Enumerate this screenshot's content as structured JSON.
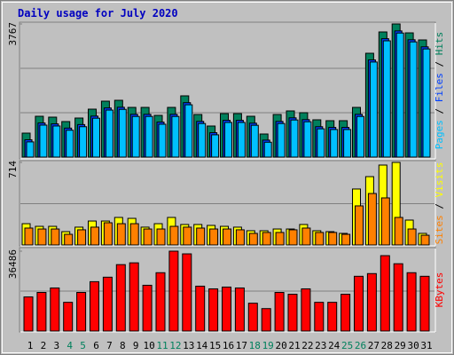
{
  "chart_data": [
    {
      "type": "bar",
      "title": "Daily usage for July 2020",
      "title_color": "#0000c0",
      "ylim": [
        0,
        3767
      ],
      "yticks": [
        3767
      ],
      "legend_separator": " / ",
      "series": [
        {
          "name": "Pages",
          "color": "#00c0ff",
          "values": [
            430,
            905,
            880,
            760,
            860,
            1100,
            1330,
            1350,
            1150,
            1150,
            930,
            1150,
            1480,
            950,
            630,
            980,
            980,
            900,
            420,
            950,
            1050,
            1000,
            800,
            780,
            780,
            1150,
            2690,
            3290,
            3510,
            3260,
            3060
          ]
        },
        {
          "name": "Files",
          "color": "#0040ff",
          "values": [
            490,
            965,
            940,
            820,
            920,
            1160,
            1390,
            1410,
            1210,
            1210,
            990,
            1210,
            1540,
            1010,
            690,
            1040,
            1040,
            960,
            480,
            1010,
            1110,
            1060,
            860,
            840,
            840,
            1210,
            2750,
            3350,
            3570,
            3320,
            3120
          ]
        },
        {
          "name": "Hits",
          "color": "#00805c",
          "values": [
            678,
            1155,
            1130,
            1005,
            1105,
            1356,
            1582,
            1607,
            1406,
            1406,
            1180,
            1406,
            1733,
            1205,
            879,
            1230,
            1230,
            1155,
            653,
            1205,
            1306,
            1256,
            1055,
            1030,
            1030,
            1406,
            2938,
            3541,
            3767,
            3515,
            3315
          ]
        }
      ]
    },
    {
      "type": "bar",
      "ylim": [
        0,
        714
      ],
      "yticks": [
        714
      ],
      "legend_separator": " / ",
      "series": [
        {
          "name": "Sites",
          "color": "#ff8000",
          "values": [
            146,
            138,
            138,
            92,
            131,
            154,
            192,
            184,
            184,
            138,
            138,
            161,
            154,
            146,
            138,
            138,
            131,
            100,
            108,
            108,
            131,
            146,
            108,
            108,
            92,
            338,
            445,
            407,
            238,
            138,
            84
          ]
        },
        {
          "name": "Visits",
          "color": "#ffff00",
          "values": [
            184,
            161,
            161,
            115,
            154,
            207,
            207,
            238,
            230,
            154,
            184,
            238,
            177,
            177,
            169,
            161,
            154,
            123,
            123,
            138,
            138,
            177,
            123,
            115,
            100,
            484,
            591,
            691,
            714,
            215,
            100
          ]
        }
      ]
    },
    {
      "type": "bar",
      "ylim": [
        0,
        36486
      ],
      "yticks": [
        36486
      ],
      "categories": [
        "1",
        "2",
        "3",
        "4",
        "5",
        "6",
        "7",
        "8",
        "9",
        "10",
        "11",
        "12",
        "13",
        "14",
        "15",
        "16",
        "17",
        "18",
        "19",
        "20",
        "21",
        "22",
        "23",
        "24",
        "25",
        "26",
        "27",
        "28",
        "29",
        "30",
        "31"
      ],
      "category_colors": [
        "#000000",
        "#000000",
        "#000000",
        "#00805c",
        "#00805c",
        "#000000",
        "#000000",
        "#000000",
        "#000000",
        "#000000",
        "#00805c",
        "#00805c",
        "#000000",
        "#000000",
        "#000000",
        "#000000",
        "#000000",
        "#00805c",
        "#00805c",
        "#000000",
        "#000000",
        "#000000",
        "#000000",
        "#000000",
        "#00805c",
        "#00805c",
        "#000000",
        "#000000",
        "#000000",
        "#000000",
        "#000000"
      ],
      "series": [
        {
          "name": "KBytes",
          "color": "#ff0000",
          "values": [
            15578,
            17628,
            19677,
            13118,
            17628,
            22547,
            24597,
            30336,
            31156,
            20907,
            26647,
            36486,
            35256,
            20497,
            19267,
            20087,
            19677,
            12708,
            10249,
            17628,
            16808,
            19267,
            13118,
            13118,
            16808,
            25007,
            26237,
            34436,
            30746,
            26647,
            25007
          ]
        }
      ]
    }
  ]
}
